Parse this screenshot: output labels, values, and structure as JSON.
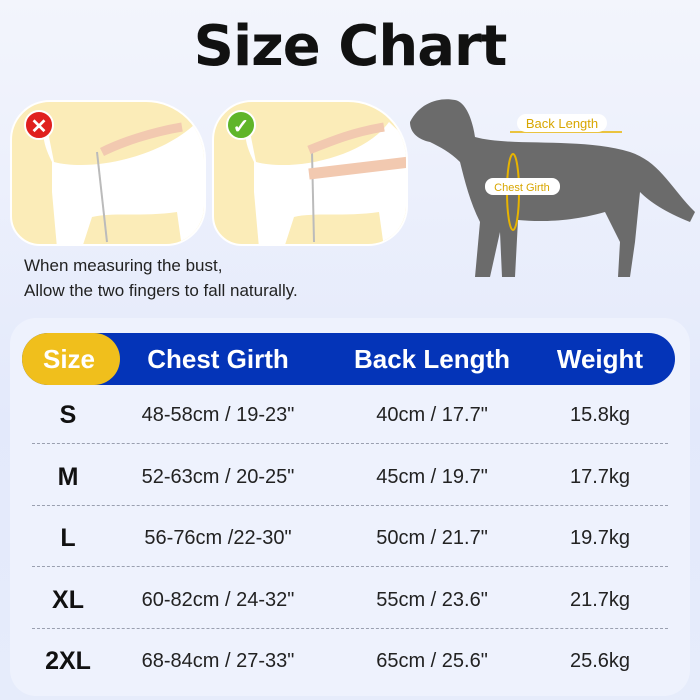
{
  "title": "Size Chart",
  "panels": [
    {
      "status": "incorrect",
      "icon": "x-icon",
      "color": "#e0201e"
    },
    {
      "status": "correct",
      "icon": "check-icon",
      "color": "#5fb52a"
    }
  ],
  "note": {
    "line1": "When measuring the bust,",
    "line2": "Allow the two fingers to fall naturally."
  },
  "diagram": {
    "back_length": "Back Length",
    "chest_girth": "Chest Girth"
  },
  "table": {
    "headers": [
      "Size",
      "Chest Girth",
      "Back Length",
      "Weight"
    ],
    "rows": [
      [
        "S",
        "48-58cm / 19-23\"",
        "40cm / 17.7\"",
        "15.8kg"
      ],
      [
        "M",
        "52-63cm / 20-25\"",
        "45cm / 19.7\"",
        "17.7kg"
      ],
      [
        "L",
        "56-76cm /22-30\"",
        "50cm / 21.7\"",
        "19.7kg"
      ],
      [
        "XL",
        "60-82cm / 24-32\"",
        "55cm / 23.6\"",
        "21.7kg"
      ],
      [
        "2XL",
        "68-84cm / 27-33\"",
        "65cm / 25.6\"",
        "25.6kg"
      ]
    ]
  },
  "colors": {
    "header": "#0434b8",
    "size_pill": "#f0bf1c",
    "accent": "#e8b400"
  }
}
